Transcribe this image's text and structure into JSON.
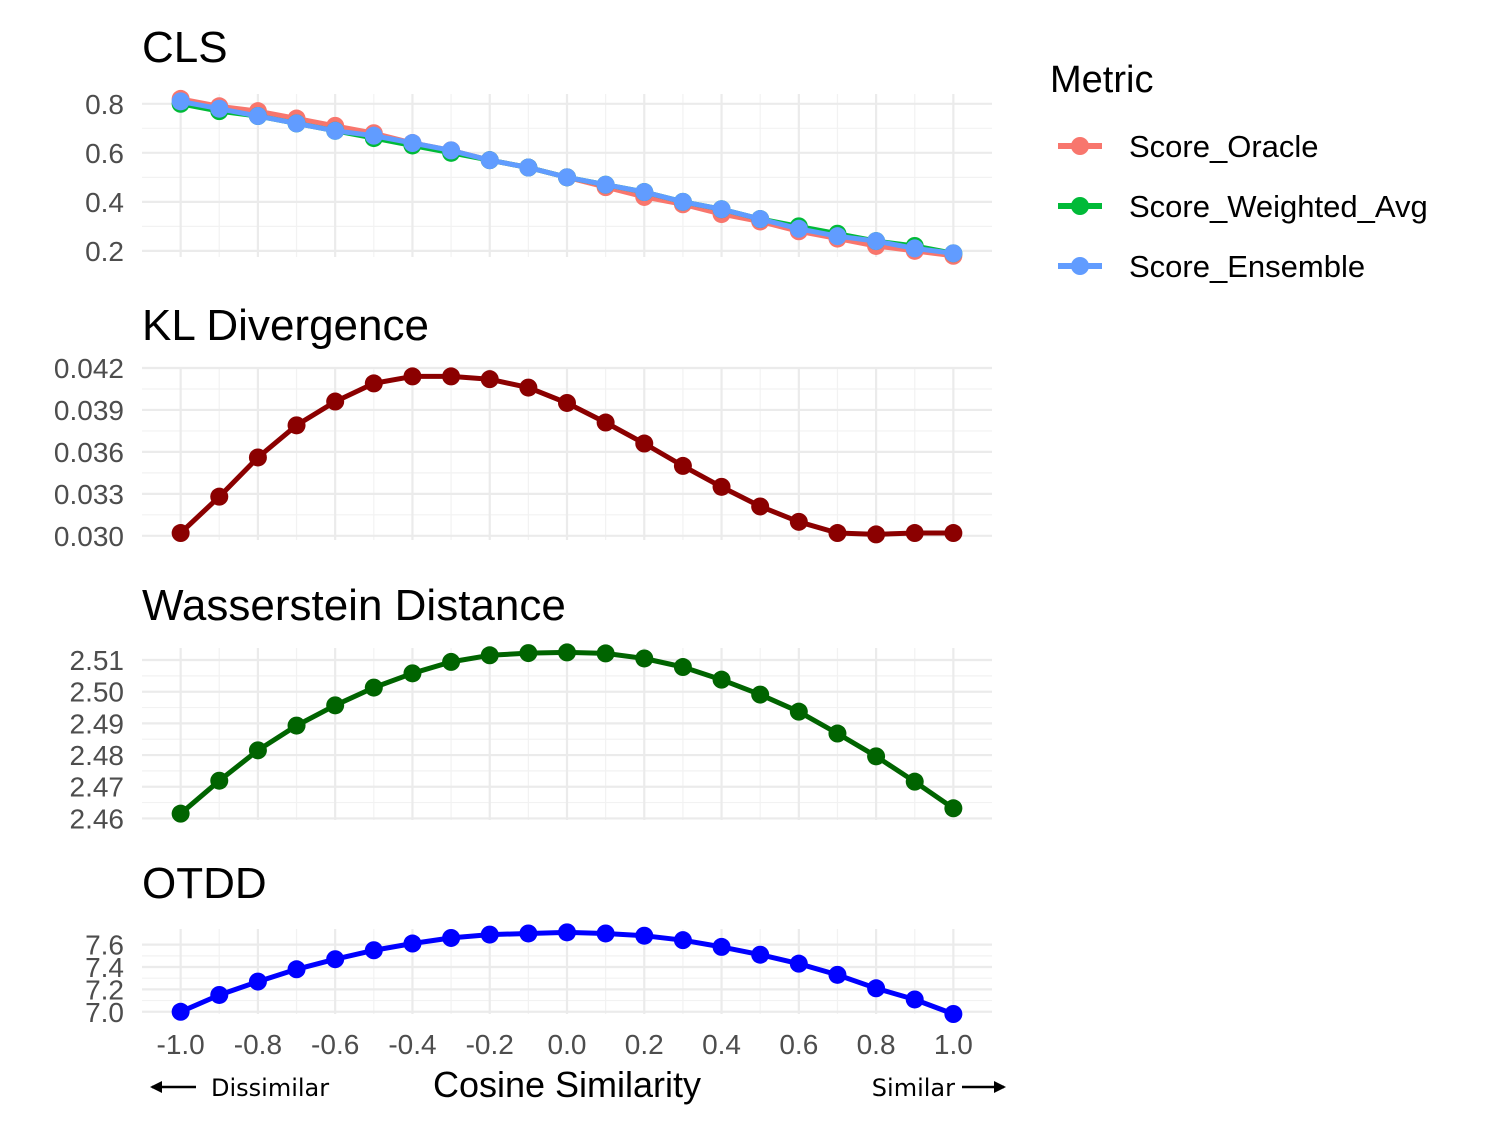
{
  "chart_data": [
    {
      "type": "line",
      "title": "CLS",
      "x": [
        -1.0,
        -0.9,
        -0.8,
        -0.7,
        -0.6,
        -0.5,
        -0.4,
        -0.3,
        -0.2,
        -0.1,
        0.0,
        0.1,
        0.2,
        0.3,
        0.4,
        0.5,
        0.6,
        0.7,
        0.8,
        0.9,
        1.0
      ],
      "ylim": [
        0.175,
        0.84
      ],
      "yticks": [
        0.2,
        0.4,
        0.6,
        0.8
      ],
      "ytick_labels": [
        "0.2",
        "0.4",
        "0.6",
        "0.8"
      ],
      "series": [
        {
          "name": "Score_Oracle",
          "color": "#F8766D",
          "values": [
            0.82,
            0.79,
            0.77,
            0.74,
            0.71,
            0.68,
            0.64,
            0.61,
            0.57,
            0.54,
            0.5,
            0.46,
            0.42,
            0.39,
            0.35,
            0.32,
            0.28,
            0.25,
            0.22,
            0.2,
            0.18
          ]
        },
        {
          "name": "Score_Weighted_Avg",
          "color": "#00BA38",
          "values": [
            0.8,
            0.77,
            0.75,
            0.72,
            0.69,
            0.66,
            0.63,
            0.6,
            0.57,
            0.54,
            0.5,
            0.47,
            0.44,
            0.4,
            0.37,
            0.33,
            0.3,
            0.27,
            0.24,
            0.22,
            0.19
          ]
        },
        {
          "name": "Score_Ensemble",
          "color": "#619CFF",
          "values": [
            0.81,
            0.78,
            0.75,
            0.72,
            0.69,
            0.67,
            0.64,
            0.61,
            0.57,
            0.54,
            0.5,
            0.47,
            0.44,
            0.4,
            0.37,
            0.33,
            0.29,
            0.26,
            0.24,
            0.21,
            0.19
          ]
        }
      ]
    },
    {
      "type": "line",
      "title": "KL Divergence",
      "x": [
        -1.0,
        -0.9,
        -0.8,
        -0.7,
        -0.6,
        -0.5,
        -0.4,
        -0.3,
        -0.2,
        -0.1,
        0.0,
        0.1,
        0.2,
        0.3,
        0.4,
        0.5,
        0.6,
        0.7,
        0.8,
        0.9,
        1.0
      ],
      "ylim": [
        0.0297,
        0.042
      ],
      "yticks": [
        0.03,
        0.033,
        0.036,
        0.039,
        0.042
      ],
      "ytick_labels": [
        "0.030",
        "0.033",
        "0.036",
        "0.039",
        "0.042"
      ],
      "series": [
        {
          "color": "#8B0000",
          "values": [
            0.0302,
            0.0328,
            0.0356,
            0.0379,
            0.0396,
            0.0409,
            0.0414,
            0.0414,
            0.0412,
            0.0406,
            0.0395,
            0.0381,
            0.0366,
            0.035,
            0.0335,
            0.0321,
            0.031,
            0.0302,
            0.0301,
            0.0302,
            0.0302
          ]
        }
      ]
    },
    {
      "type": "line",
      "title": "Wasserstein Distance",
      "x": [
        -1.0,
        -0.9,
        -0.8,
        -0.7,
        -0.6,
        -0.5,
        -0.4,
        -0.3,
        -0.2,
        -0.1,
        0.0,
        0.1,
        0.2,
        0.3,
        0.4,
        0.5,
        0.6,
        0.7,
        0.8,
        0.9,
        1.0
      ],
      "ylim": [
        2.4595,
        2.5138
      ],
      "yticks": [
        2.46,
        2.47,
        2.48,
        2.49,
        2.5,
        2.51
      ],
      "ytick_labels": [
        "2.46",
        "2.47",
        "2.48",
        "2.49",
        "2.50",
        "2.51"
      ],
      "series": [
        {
          "color": "#006400",
          "values": [
            2.4615,
            2.4719,
            2.4815,
            2.4893,
            2.4957,
            2.5013,
            2.5058,
            2.5094,
            2.5115,
            2.5122,
            2.5124,
            2.5121,
            2.5105,
            2.5078,
            2.5038,
            2.4991,
            2.4937,
            2.4868,
            2.4796,
            2.4716,
            2.4632
          ]
        }
      ]
    },
    {
      "type": "line",
      "title": "OTDD",
      "x": [
        -1.0,
        -0.9,
        -0.8,
        -0.7,
        -0.6,
        -0.5,
        -0.4,
        -0.3,
        -0.2,
        -0.1,
        0.0,
        0.1,
        0.2,
        0.3,
        0.4,
        0.5,
        0.6,
        0.7,
        0.8,
        0.9,
        1.0
      ],
      "ylim": [
        6.98,
        7.74
      ],
      "yticks": [
        7.0,
        7.2,
        7.4,
        7.6
      ],
      "ytick_labels": [
        "7.0",
        "7.2",
        "7.4",
        "7.6"
      ],
      "xticks": [
        -1.0,
        -0.8,
        -0.6,
        -0.4,
        -0.2,
        0.0,
        0.2,
        0.4,
        0.6,
        0.8,
        1.0
      ],
      "xtick_labels": [
        "-1.0",
        "-0.8",
        "-0.6",
        "-0.4",
        "-0.2",
        "0.0",
        "0.2",
        "0.4",
        "0.6",
        "0.8",
        "1.0"
      ],
      "xlabel": "Cosine Similarity",
      "series": [
        {
          "color": "#0000FF",
          "values": [
            7.0,
            7.15,
            7.27,
            7.38,
            7.47,
            7.55,
            7.61,
            7.66,
            7.69,
            7.7,
            7.71,
            7.7,
            7.68,
            7.64,
            7.58,
            7.51,
            7.43,
            7.33,
            7.21,
            7.11,
            6.98
          ]
        }
      ]
    }
  ],
  "legend": {
    "title": "Metric",
    "position": "top-right",
    "items": [
      {
        "label": "Score_Oracle",
        "color": "#F8766D"
      },
      {
        "label": "Score_Weighted_Avg",
        "color": "#00BA38"
      },
      {
        "label": "Score_Ensemble",
        "color": "#619CFF"
      }
    ]
  },
  "annotations": {
    "left": "Dissimilar",
    "right": "Similar"
  }
}
